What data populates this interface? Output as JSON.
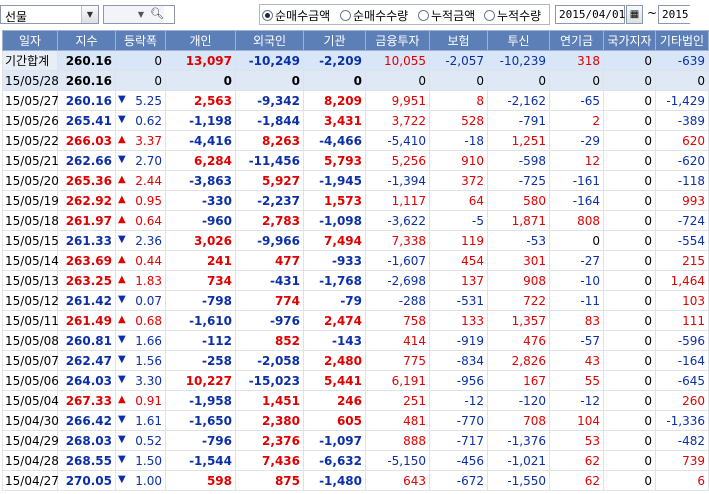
{
  "toolbar": {
    "market_combo": "선물",
    "search_value": "",
    "radios": [
      {
        "label": "순매수금액",
        "selected": true
      },
      {
        "label": "순매수수량",
        "selected": false
      },
      {
        "label": "누적금액",
        "selected": false
      },
      {
        "label": "누적수량",
        "selected": false
      }
    ],
    "date_from": "2015/04/01",
    "date_sep": "~",
    "date_to": "2015"
  },
  "table": {
    "headers": [
      "일자",
      "지수",
      "등락폭",
      "개인",
      "외국인",
      "기관",
      "금융투자",
      "보험",
      "투신",
      "연기금",
      "국가지자",
      "기타법인"
    ],
    "rows": [
      {
        "date": "기간합계",
        "index": "260.16",
        "dir": "",
        "chg": "0",
        "p": "13,097",
        "f": "-10,249",
        "i": "-2,209",
        "fin": "10,055",
        "ins": "-2,057",
        "inv": "-10,239",
        "pen": "318",
        "gov": "0",
        "etc": "-639",
        "kind": "total"
      },
      {
        "date": "15/05/28",
        "index": "260.16",
        "dir": "",
        "chg": "0",
        "p": "0",
        "f": "0",
        "i": "0",
        "fin": "0",
        "ins": "0",
        "inv": "0",
        "pen": "0",
        "gov": "0",
        "etc": "0",
        "kind": "sel"
      },
      {
        "date": "15/05/27",
        "index": "260.16",
        "dir": "down",
        "chg": "5.25",
        "p": "2,563",
        "f": "-9,342",
        "i": "8,209",
        "fin": "9,951",
        "ins": "8",
        "inv": "-2,162",
        "pen": "-65",
        "gov": "0",
        "etc": "-1,429"
      },
      {
        "date": "15/05/26",
        "index": "265.41",
        "dir": "down",
        "chg": "0.62",
        "p": "-1,198",
        "f": "-1,844",
        "i": "3,431",
        "fin": "3,722",
        "ins": "528",
        "inv": "-791",
        "pen": "2",
        "gov": "0",
        "etc": "-389"
      },
      {
        "date": "15/05/22",
        "index": "266.03",
        "dir": "up",
        "chg": "3.37",
        "p": "-4,416",
        "f": "8,263",
        "i": "-4,466",
        "fin": "-5,410",
        "ins": "-18",
        "inv": "1,251",
        "pen": "-29",
        "gov": "0",
        "etc": "620"
      },
      {
        "date": "15/05/21",
        "index": "262.66",
        "dir": "down",
        "chg": "2.70",
        "p": "6,284",
        "f": "-11,456",
        "i": "5,793",
        "fin": "5,256",
        "ins": "910",
        "inv": "-598",
        "pen": "12",
        "gov": "0",
        "etc": "-620"
      },
      {
        "date": "15/05/20",
        "index": "265.36",
        "dir": "up",
        "chg": "2.44",
        "p": "-3,863",
        "f": "5,927",
        "i": "-1,945",
        "fin": "-1,394",
        "ins": "372",
        "inv": "-725",
        "pen": "-161",
        "gov": "0",
        "etc": "-118"
      },
      {
        "date": "15/05/19",
        "index": "262.92",
        "dir": "up",
        "chg": "0.95",
        "p": "-330",
        "f": "-2,237",
        "i": "1,573",
        "fin": "1,117",
        "ins": "64",
        "inv": "580",
        "pen": "-164",
        "gov": "0",
        "etc": "993"
      },
      {
        "date": "15/05/18",
        "index": "261.97",
        "dir": "up",
        "chg": "0.64",
        "p": "-960",
        "f": "2,783",
        "i": "-1,098",
        "fin": "-3,622",
        "ins": "-5",
        "inv": "1,871",
        "pen": "808",
        "gov": "0",
        "etc": "-724"
      },
      {
        "date": "15/05/15",
        "index": "261.33",
        "dir": "down",
        "chg": "2.36",
        "p": "3,026",
        "f": "-9,966",
        "i": "7,494",
        "fin": "7,338",
        "ins": "119",
        "inv": "-53",
        "pen": "0",
        "gov": "0",
        "etc": "-554"
      },
      {
        "date": "15/05/14",
        "index": "263.69",
        "dir": "up",
        "chg": "0.44",
        "p": "241",
        "f": "477",
        "i": "-933",
        "fin": "-1,607",
        "ins": "454",
        "inv": "301",
        "pen": "-27",
        "gov": "0",
        "etc": "215"
      },
      {
        "date": "15/05/13",
        "index": "263.25",
        "dir": "up",
        "chg": "1.83",
        "p": "734",
        "f": "-431",
        "i": "-1,768",
        "fin": "-2,698",
        "ins": "137",
        "inv": "908",
        "pen": "-10",
        "gov": "0",
        "etc": "1,464"
      },
      {
        "date": "15/05/12",
        "index": "261.42",
        "dir": "down",
        "chg": "0.07",
        "p": "-798",
        "f": "774",
        "i": "-79",
        "fin": "-288",
        "ins": "-531",
        "inv": "722",
        "pen": "-11",
        "gov": "0",
        "etc": "103"
      },
      {
        "date": "15/05/11",
        "index": "261.49",
        "dir": "up",
        "chg": "0.68",
        "p": "-1,610",
        "f": "-976",
        "i": "2,474",
        "fin": "758",
        "ins": "133",
        "inv": "1,357",
        "pen": "83",
        "gov": "0",
        "etc": "111"
      },
      {
        "date": "15/05/08",
        "index": "260.81",
        "dir": "down",
        "chg": "1.66",
        "p": "-112",
        "f": "852",
        "i": "-143",
        "fin": "414",
        "ins": "-919",
        "inv": "476",
        "pen": "-57",
        "gov": "0",
        "etc": "-596"
      },
      {
        "date": "15/05/07",
        "index": "262.47",
        "dir": "down",
        "chg": "1.56",
        "p": "-258",
        "f": "-2,058",
        "i": "2,480",
        "fin": "775",
        "ins": "-834",
        "inv": "2,826",
        "pen": "43",
        "gov": "0",
        "etc": "-164"
      },
      {
        "date": "15/05/06",
        "index": "264.03",
        "dir": "down",
        "chg": "3.30",
        "p": "10,227",
        "f": "-15,023",
        "i": "5,441",
        "fin": "6,191",
        "ins": "-956",
        "inv": "167",
        "pen": "55",
        "gov": "0",
        "etc": "-645"
      },
      {
        "date": "15/05/04",
        "index": "267.33",
        "dir": "up",
        "chg": "0.91",
        "p": "-1,958",
        "f": "1,451",
        "i": "246",
        "fin": "251",
        "ins": "-12",
        "inv": "-120",
        "pen": "-12",
        "gov": "0",
        "etc": "260"
      },
      {
        "date": "15/04/30",
        "index": "266.42",
        "dir": "down",
        "chg": "1.61",
        "p": "-1,650",
        "f": "2,380",
        "i": "605",
        "fin": "481",
        "ins": "-770",
        "inv": "708",
        "pen": "104",
        "gov": "0",
        "etc": "-1,336"
      },
      {
        "date": "15/04/29",
        "index": "268.03",
        "dir": "down",
        "chg": "0.52",
        "p": "-796",
        "f": "2,376",
        "i": "-1,097",
        "fin": "888",
        "ins": "-717",
        "inv": "-1,376",
        "pen": "53",
        "gov": "0",
        "etc": "-482"
      },
      {
        "date": "15/04/28",
        "index": "268.55",
        "dir": "down",
        "chg": "1.50",
        "p": "-1,544",
        "f": "7,436",
        "i": "-6,632",
        "fin": "-5,150",
        "ins": "-456",
        "inv": "-1,021",
        "pen": "62",
        "gov": "0",
        "etc": "739"
      },
      {
        "date": "15/04/27",
        "index": "270.05",
        "dir": "down",
        "chg": "1.00",
        "p": "598",
        "f": "875",
        "i": "-1,480",
        "fin": "643",
        "ins": "-672",
        "inv": "-1,550",
        "pen": "62",
        "gov": "0",
        "etc": "6"
      }
    ]
  },
  "colors": {
    "up": "#e00000",
    "down": "#0b2fa8",
    "header_bg": "#5b7fb6",
    "total_bg": "#d9e6f7"
  }
}
